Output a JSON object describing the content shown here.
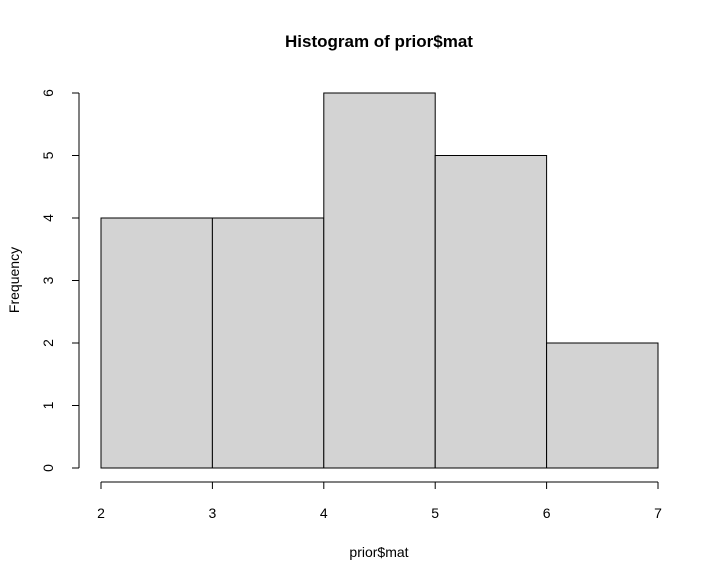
{
  "chart_data": {
    "type": "bar",
    "title": "Histogram of prior$mat",
    "xlabel": "prior$mat",
    "ylabel": "Frequency",
    "bins": [
      {
        "start": 2,
        "end": 3,
        "count": 4
      },
      {
        "start": 3,
        "end": 4,
        "count": 4
      },
      {
        "start": 4,
        "end": 5,
        "count": 6
      },
      {
        "start": 5,
        "end": 6,
        "count": 5
      },
      {
        "start": 6,
        "end": 7,
        "count": 2
      }
    ],
    "xlim": [
      2,
      7
    ],
    "ylim": [
      0,
      6
    ],
    "x_ticks": [
      2,
      3,
      4,
      5,
      6,
      7
    ],
    "y_ticks": [
      0,
      1,
      2,
      3,
      4,
      5,
      6
    ],
    "bar_color": "#d3d3d3",
    "grid": false,
    "legend": "none"
  }
}
